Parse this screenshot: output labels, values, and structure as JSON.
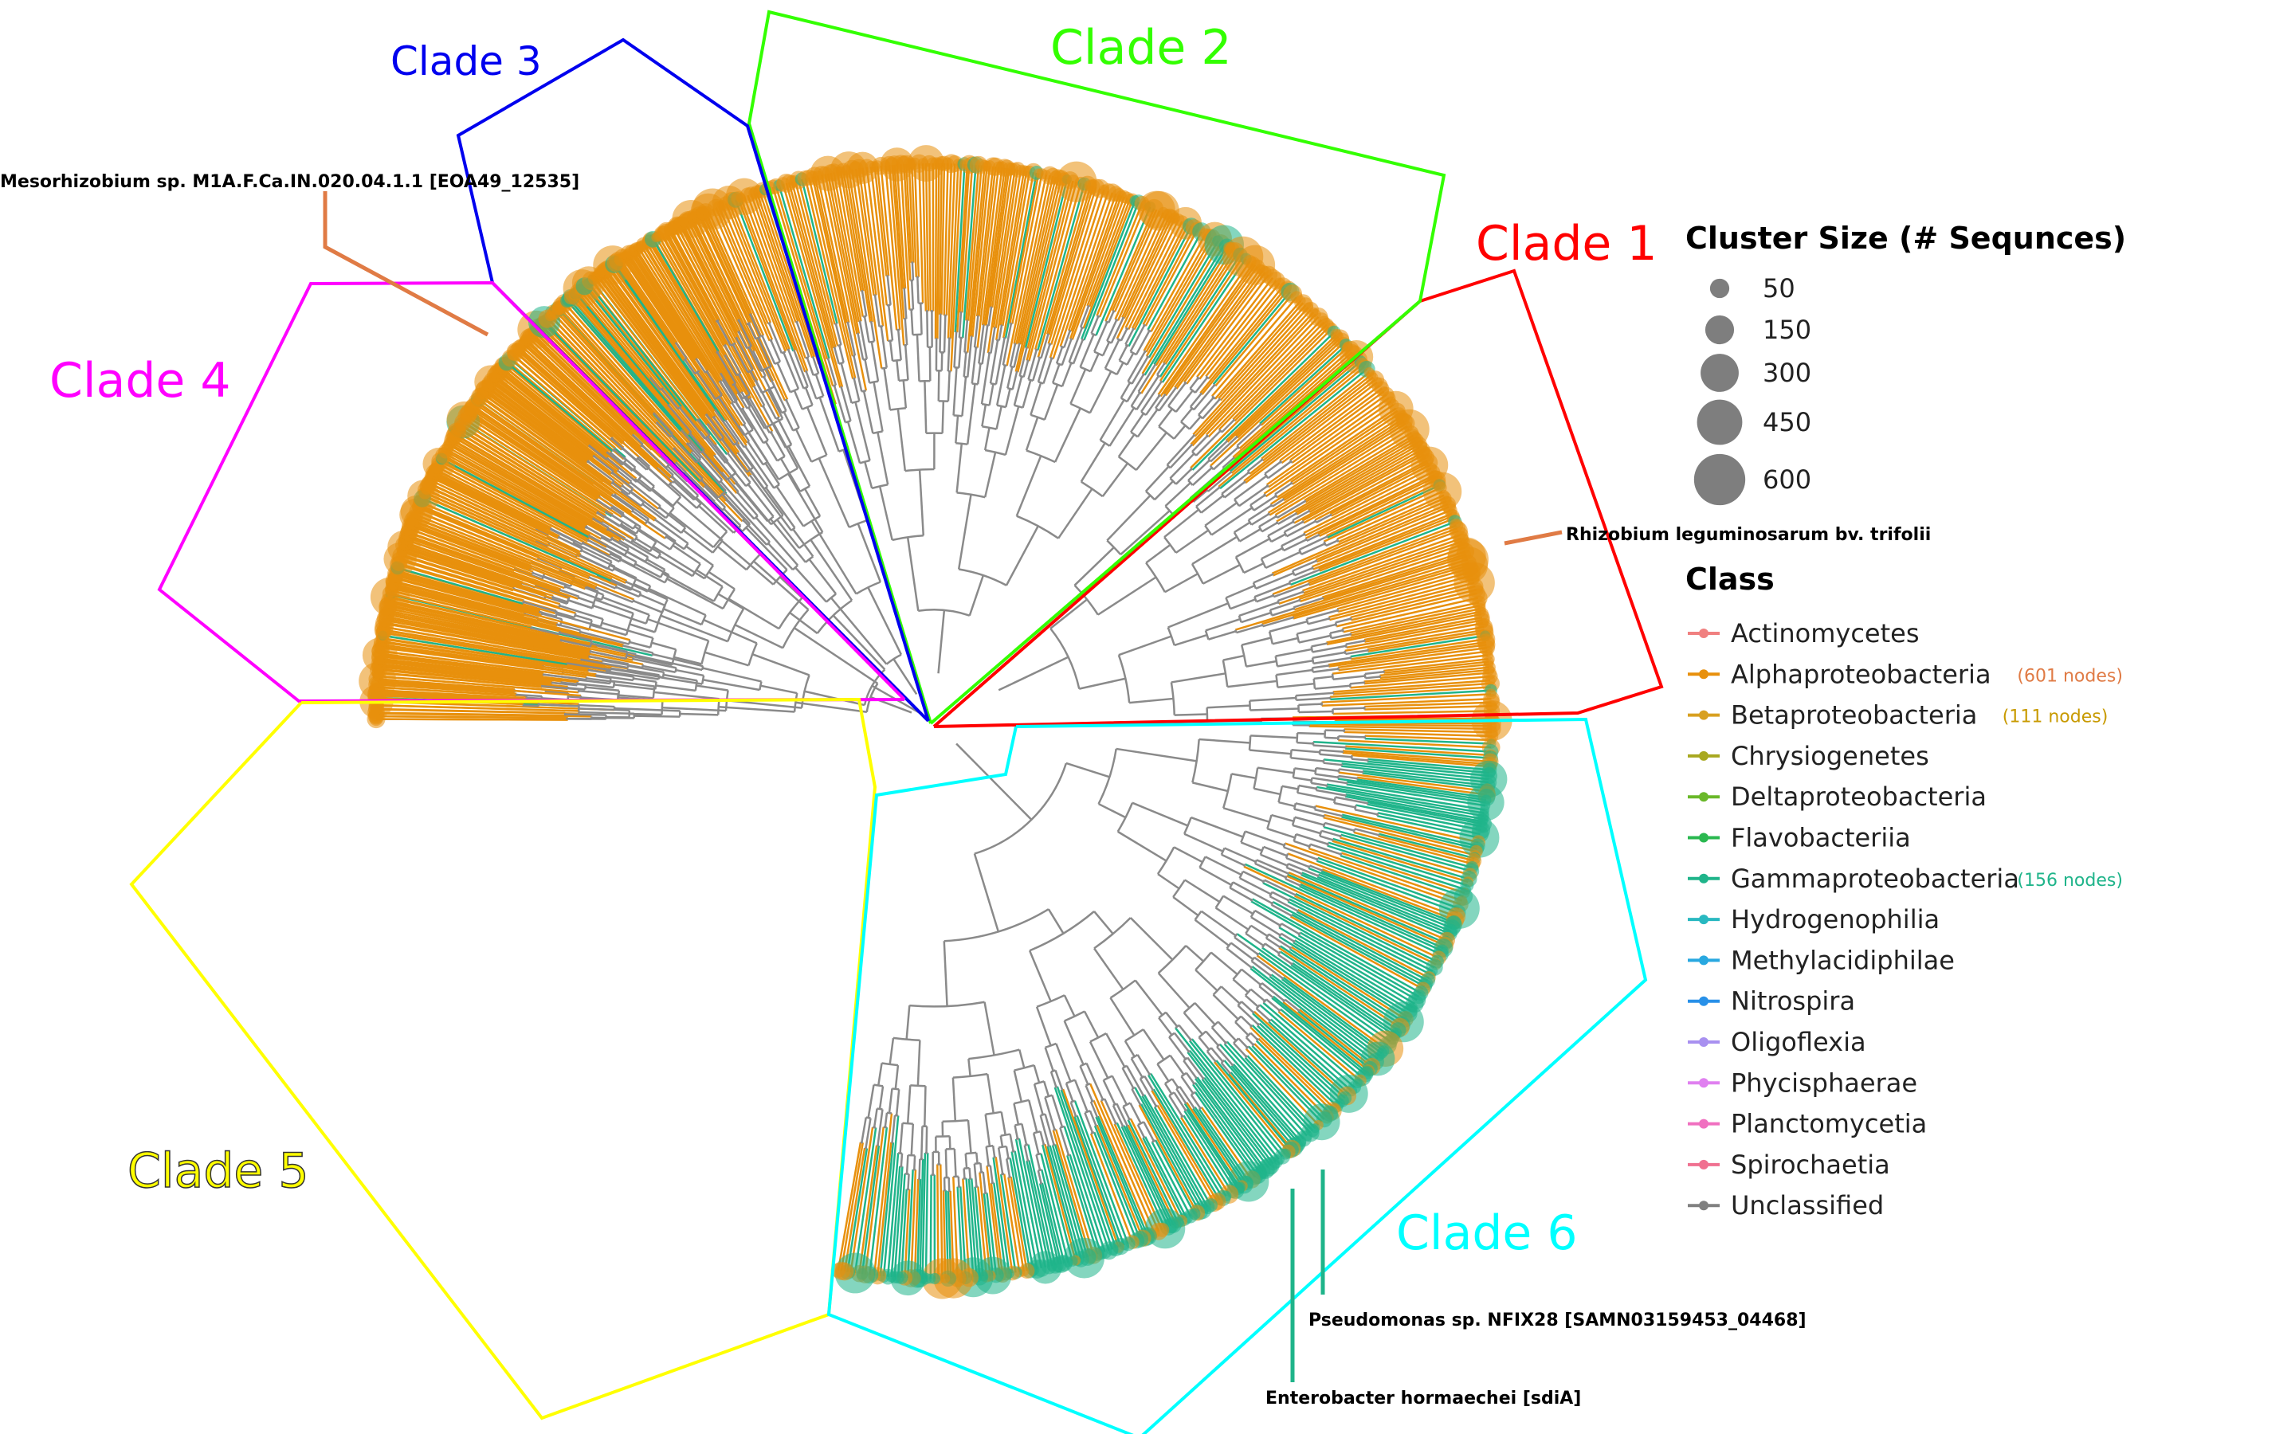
{
  "clades": [
    {
      "label": "Clade 1",
      "color": "#ff0000"
    },
    {
      "label": "Clade 2",
      "color": "#33ff00"
    },
    {
      "label": "Clade 3",
      "color": "#0000ee"
    },
    {
      "label": "Clade 4",
      "color": "#ff00ff"
    },
    {
      "label": "Clade 5",
      "color": "#ffff00"
    },
    {
      "label": "Clade 6",
      "color": "#00ffff"
    }
  ],
  "annotations": [
    {
      "text": "Mesorhizobium sp. M1A.F.Ca.IN.020.04.1.1 [EOA49_12535]",
      "color": "#e07b45"
    },
    {
      "text": "Rhizobium leguminosarum bv. trifolii",
      "color": "#e07b45"
    },
    {
      "text": "Pseudomonas sp. NFIX28 [SAMN03159453_04468]",
      "color": "#1fb48a"
    },
    {
      "text": "Enterobacter hormaechei [sdiA]",
      "color": "#1fb48a"
    }
  ],
  "legend": {
    "size_title": "Cluster Size (# Sequnces)",
    "sizes": [
      {
        "label": "50",
        "value": 50
      },
      {
        "label": "150",
        "value": 150
      },
      {
        "label": "300",
        "value": 300
      },
      {
        "label": "450",
        "value": 450
      },
      {
        "label": "600",
        "value": 600
      }
    ],
    "class_title": "Class",
    "classes": [
      {
        "name": "Actinomycetes",
        "color": "#f08080",
        "note": ""
      },
      {
        "name": "Alphaproteobacteria",
        "color": "#e8900c",
        "note": "(601 nodes)",
        "note_color": "#e07b45"
      },
      {
        "name": "Betaproteobacteria",
        "color": "#d8a020",
        "note": "(111 nodes)",
        "note_color": "#c89a00"
      },
      {
        "name": "Chrysiogenetes",
        "color": "#a8a820",
        "note": ""
      },
      {
        "name": "Deltaproteobacteria",
        "color": "#6ab82a",
        "note": ""
      },
      {
        "name": "Flavobacteriia",
        "color": "#2ab850",
        "note": ""
      },
      {
        "name": "Gammaproteobacteria",
        "color": "#1fb48a",
        "note": "(156 nodes)",
        "note_color": "#1fb48a"
      },
      {
        "name": "Hydrogenophilia",
        "color": "#28b8c0",
        "note": ""
      },
      {
        "name": "Methylacidiphilae",
        "color": "#28a8e0",
        "note": ""
      },
      {
        "name": "Nitrospira",
        "color": "#2890e8",
        "note": ""
      },
      {
        "name": "Oligoflexia",
        "color": "#a890f0",
        "note": ""
      },
      {
        "name": "Phycisphaerae",
        "color": "#e080f0",
        "note": ""
      },
      {
        "name": "Planctomycetia",
        "color": "#f070c0",
        "note": ""
      },
      {
        "name": "Spirochaetia",
        "color": "#f07090",
        "note": ""
      },
      {
        "name": "Unclassified",
        "color": "#808080",
        "note": ""
      }
    ]
  }
}
